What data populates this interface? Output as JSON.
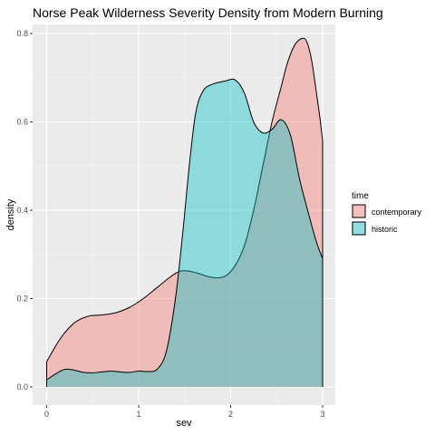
{
  "chart_data": {
    "type": "area",
    "title": "Norse Peak Wilderness Severity Density from Modern Burning",
    "xlabel": "sev",
    "ylabel": "density",
    "xlim": [
      0,
      3
    ],
    "ylim": [
      0,
      0.8
    ],
    "x_ticks": [
      "0",
      "1",
      "2",
      "3"
    ],
    "y_ticks": [
      "0.0",
      "0.2",
      "0.4",
      "0.6",
      "0.8"
    ],
    "x_tick_values": [
      0,
      1,
      2,
      3
    ],
    "y_tick_values": [
      0,
      0.2,
      0.4,
      0.6,
      0.8
    ],
    "grid": true,
    "legend": {
      "title": "time",
      "placement": "right"
    },
    "series": [
      {
        "name": "contemporary",
        "color": "#F8766D",
        "points": [
          [
            0.0,
            0.057
          ],
          [
            0.15,
            0.11
          ],
          [
            0.3,
            0.145
          ],
          [
            0.45,
            0.16
          ],
          [
            0.6,
            0.163
          ],
          [
            0.75,
            0.168
          ],
          [
            0.9,
            0.18
          ],
          [
            1.05,
            0.2
          ],
          [
            1.2,
            0.225
          ],
          [
            1.35,
            0.25
          ],
          [
            1.45,
            0.262
          ],
          [
            1.55,
            0.262
          ],
          [
            1.65,
            0.257
          ],
          [
            1.75,
            0.25
          ],
          [
            1.85,
            0.247
          ],
          [
            1.95,
            0.252
          ],
          [
            2.05,
            0.275
          ],
          [
            2.15,
            0.32
          ],
          [
            2.25,
            0.4
          ],
          [
            2.35,
            0.5
          ],
          [
            2.45,
            0.6
          ],
          [
            2.55,
            0.68
          ],
          [
            2.62,
            0.735
          ],
          [
            2.7,
            0.775
          ],
          [
            2.78,
            0.789
          ],
          [
            2.83,
            0.78
          ],
          [
            2.88,
            0.74
          ],
          [
            2.93,
            0.67
          ],
          [
            2.97,
            0.61
          ],
          [
            3.0,
            0.557
          ]
        ]
      },
      {
        "name": "historic",
        "color": "#00BFC4",
        "points": [
          [
            0.0,
            0.016
          ],
          [
            0.1,
            0.03
          ],
          [
            0.2,
            0.04
          ],
          [
            0.3,
            0.038
          ],
          [
            0.4,
            0.033
          ],
          [
            0.5,
            0.032
          ],
          [
            0.6,
            0.034
          ],
          [
            0.7,
            0.036
          ],
          [
            0.8,
            0.034
          ],
          [
            0.9,
            0.033
          ],
          [
            1.0,
            0.036
          ],
          [
            1.1,
            0.035
          ],
          [
            1.2,
            0.04
          ],
          [
            1.3,
            0.08
          ],
          [
            1.4,
            0.2
          ],
          [
            1.48,
            0.35
          ],
          [
            1.55,
            0.5
          ],
          [
            1.62,
            0.62
          ],
          [
            1.7,
            0.67
          ],
          [
            1.8,
            0.685
          ],
          [
            1.95,
            0.693
          ],
          [
            2.05,
            0.695
          ],
          [
            2.15,
            0.665
          ],
          [
            2.25,
            0.6
          ],
          [
            2.35,
            0.575
          ],
          [
            2.45,
            0.583
          ],
          [
            2.55,
            0.605
          ],
          [
            2.65,
            0.57
          ],
          [
            2.75,
            0.47
          ],
          [
            2.85,
            0.39
          ],
          [
            2.93,
            0.33
          ],
          [
            3.0,
            0.29
          ]
        ]
      }
    ]
  }
}
